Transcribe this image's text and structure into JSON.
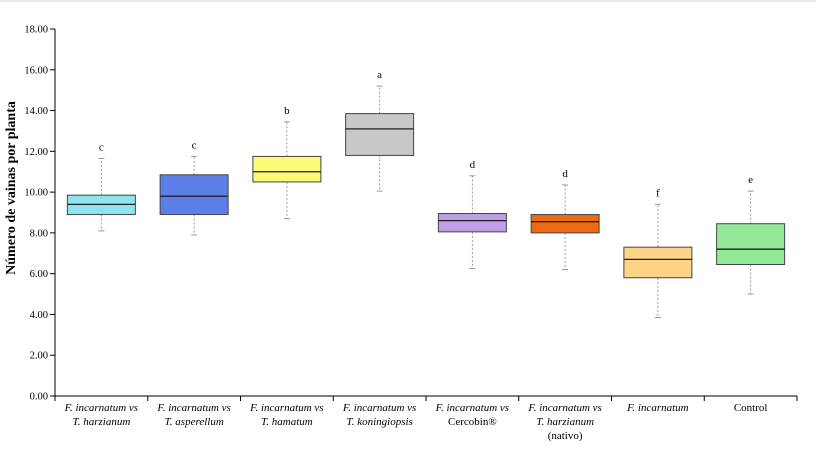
{
  "chart_data": {
    "type": "box",
    "title": "",
    "xlabel": "",
    "ylabel": "Número de vainas por planta",
    "ylim": [
      0,
      18
    ],
    "yticks": [
      "0.00",
      "2.00",
      "4.00",
      "6.00",
      "8.00",
      "10.00",
      "12.00",
      "14.00",
      "16.00",
      "18.00"
    ],
    "grid": false,
    "legend": "none",
    "categories": [
      {
        "line1": "F. incarnatum vs",
        "line1_italic": true,
        "line2": "T. harzianum",
        "line2_italic": true,
        "line3": ""
      },
      {
        "line1": "F. incarnatum vs",
        "line1_italic": true,
        "line2": "T. asperellum",
        "line2_italic": true,
        "line3": ""
      },
      {
        "line1": "F. incarnatum vs",
        "line1_italic": true,
        "line2": "T. hamatum",
        "line2_italic": true,
        "line3": ""
      },
      {
        "line1": "F. incarnatum vs",
        "line1_italic": true,
        "line2": "T. koningiopsis",
        "line2_italic": true,
        "line3": ""
      },
      {
        "line1": "F. incarnatum vs",
        "line1_italic": true,
        "line2": "Cercobin®",
        "line2_italic": false,
        "line3": ""
      },
      {
        "line1": "F. incarnatum vs",
        "line1_italic": true,
        "line2": "T. harzianum",
        "line2_italic": true,
        "line3": "(nativo)"
      },
      {
        "line1": "F. incarnatum",
        "line1_italic": true,
        "line2": "",
        "line2_italic": false,
        "line3": ""
      },
      {
        "line1": "Control",
        "line1_italic": false,
        "line2": "",
        "line2_italic": false,
        "line3": ""
      }
    ],
    "boxes": [
      {
        "min": 8.1,
        "q1": 8.9,
        "median": 9.4,
        "q3": 9.85,
        "max": 11.65,
        "letter": "c",
        "color": "#8fe3ee"
      },
      {
        "min": 7.9,
        "q1": 8.9,
        "median": 9.8,
        "q3": 10.85,
        "max": 11.75,
        "letter": "c",
        "color": "#5b7ee8"
      },
      {
        "min": 8.7,
        "q1": 10.5,
        "median": 11.0,
        "q3": 11.75,
        "max": 13.45,
        "letter": "b",
        "color": "#fcf978"
      },
      {
        "min": 10.05,
        "q1": 11.8,
        "median": 13.1,
        "q3": 13.85,
        "max": 15.2,
        "letter": "a",
        "color": "#c8c8c8"
      },
      {
        "min": 6.25,
        "q1": 8.05,
        "median": 8.6,
        "q3": 8.95,
        "max": 10.8,
        "letter": "d",
        "color": "#c19ee6"
      },
      {
        "min": 6.2,
        "q1": 8.0,
        "median": 8.55,
        "q3": 8.9,
        "max": 10.35,
        "letter": "d",
        "color": "#ec6a12"
      },
      {
        "min": 3.85,
        "q1": 5.8,
        "median": 6.7,
        "q3": 7.3,
        "max": 9.4,
        "letter": "f",
        "color": "#fdd488"
      },
      {
        "min": 5.0,
        "q1": 6.45,
        "median": 7.2,
        "q3": 8.45,
        "max": 10.05,
        "letter": "e",
        "color": "#92ea98"
      }
    ]
  }
}
